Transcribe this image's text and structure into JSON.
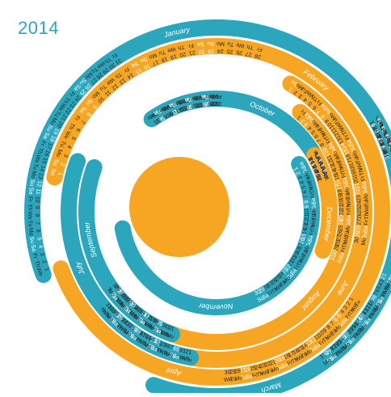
{
  "year": "2014",
  "colors": {
    "teal": "#2ba6bd",
    "orange": "#f6a623",
    "text": "#2a2a2a",
    "weekend_text": "#ffffff",
    "year_text": "#2ba6bd",
    "sun": "#f6a623"
  },
  "weekday_labels": [
    "Mo",
    "Tu",
    "We",
    "Th",
    "Fr",
    "Sa",
    "Su"
  ],
  "months": [
    {
      "name": "January",
      "color": "teal",
      "first_weekday": 2,
      "days": 31
    },
    {
      "name": "February",
      "color": "orange",
      "first_weekday": 5,
      "days": 28
    },
    {
      "name": "March",
      "color": "teal",
      "first_weekday": 5,
      "days": 31
    },
    {
      "name": "April",
      "color": "orange",
      "first_weekday": 1,
      "days": 30
    },
    {
      "name": "May",
      "color": "teal",
      "first_weekday": 3,
      "days": 31
    },
    {
      "name": "June",
      "color": "orange",
      "first_weekday": 6,
      "days": 30
    },
    {
      "name": "July",
      "color": "teal",
      "first_weekday": 1,
      "days": 31
    },
    {
      "name": "August",
      "color": "orange",
      "first_weekday": 4,
      "days": 31
    },
    {
      "name": "September",
      "color": "teal",
      "first_weekday": 0,
      "days": 30
    },
    {
      "name": "October",
      "color": "teal",
      "first_weekday": 2,
      "days": 31
    },
    {
      "name": "November",
      "color": "teal",
      "first_weekday": 5,
      "days": 30
    },
    {
      "name": "December",
      "color": "orange",
      "first_weekday": 0,
      "days": 31
    }
  ]
}
